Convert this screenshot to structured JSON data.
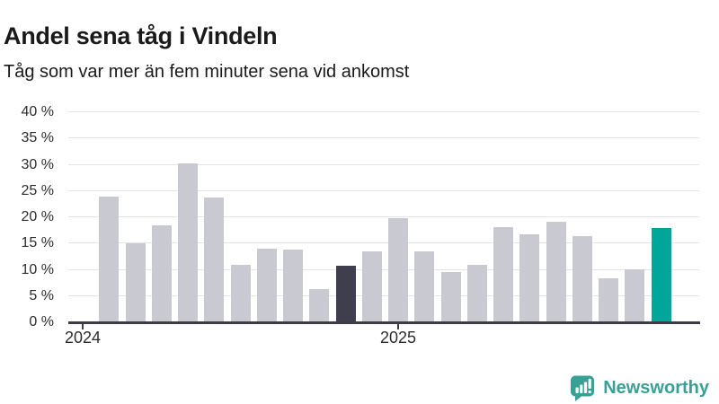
{
  "page": {
    "title": "Andel sena tåg i Vindeln",
    "subtitle": "Tåg som var mer än fem minuter sena vid ankomst"
  },
  "footer": {
    "brand": "Newsworthy"
  },
  "colors": {
    "bar_default": "#c9c9d1",
    "bar_dark": "#3e3e4f",
    "bar_latest": "#00a69a",
    "gridline": "#e3e3e8",
    "axis": "#3c3c44",
    "text": "#1a1a1a",
    "tick_label": "#2d2d2d",
    "brand_teal": "#38a094"
  },
  "chart_data": {
    "type": "bar",
    "title": "Andel sena tåg i Vindeln",
    "subtitle": "Tåg som var mer än fem minuter sena vid ankomst",
    "unit": "%",
    "ylim": [
      0,
      40
    ],
    "ytick_step": 5,
    "yticks": [
      "0 %",
      "5 %",
      "10 %",
      "15 %",
      "20 %",
      "25 %",
      "30 %",
      "35 %",
      "40 %"
    ],
    "xticks": [
      {
        "label": "2024",
        "month_offset": 0
      },
      {
        "label": "2025",
        "month_offset": 12
      }
    ],
    "categories": [
      "2024-02",
      "2024-03",
      "2024-04",
      "2024-05",
      "2024-06",
      "2024-07",
      "2024-08",
      "2024-09",
      "2024-10",
      "2024-11",
      "2024-12",
      "2025-01",
      "2025-02",
      "2025-03",
      "2025-04",
      "2025-05",
      "2025-06",
      "2025-07",
      "2025-08",
      "2025-09",
      "2025-10",
      "2025-11"
    ],
    "values": [
      24.0,
      15.0,
      18.5,
      30.3,
      23.8,
      11.0,
      14.0,
      13.9,
      6.4,
      10.8,
      13.5,
      19.9,
      13.5,
      9.5,
      11.0,
      18.1,
      16.7,
      19.1,
      16.4,
      8.3,
      10.1,
      18.0
    ],
    "highlight": {
      "dark_month": "2024-11",
      "latest_month": "2025-11"
    },
    "grid": true,
    "legend": "none"
  }
}
